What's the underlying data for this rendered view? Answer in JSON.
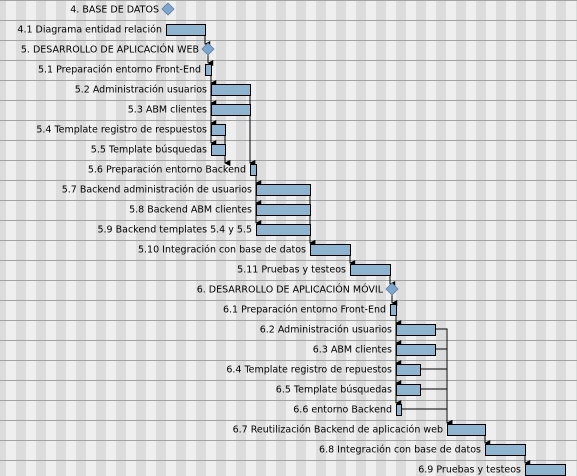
{
  "gantt": {
    "tasks": [
      {
        "label": "4. BASE DE DATOS",
        "type": "milestone"
      },
      {
        "label": "4.1 Diagrama entidad relación",
        "type": "task"
      },
      {
        "label": "5. DESARROLLO DE APLICACIÓN WEB",
        "type": "milestone"
      },
      {
        "label": "5.1 Preparación entorno Front-End",
        "type": "task"
      },
      {
        "label": "5.2 Administración usuarios",
        "type": "task"
      },
      {
        "label": "5.3 ABM clientes",
        "type": "task"
      },
      {
        "label": "5.4 Template registro de respuestos",
        "type": "task"
      },
      {
        "label": "5.5 Template búsquedas",
        "type": "task"
      },
      {
        "label": "5.6 Preparación entorno Backend",
        "type": "task"
      },
      {
        "label": "5.7 Backend administración de usuarios",
        "type": "task"
      },
      {
        "label": "5.8 Backend ABM clientes",
        "type": "task"
      },
      {
        "label": "5.9 Backend templates 5.4 y 5.5",
        "type": "task"
      },
      {
        "label": "5.10 Integración con base de datos",
        "type": "task"
      },
      {
        "label": "5.11 Pruebas y testeos",
        "type": "task"
      },
      {
        "label": "6. DESARROLLO DE APLICACIÓN MÓVIL",
        "type": "milestone"
      },
      {
        "label": "6.1 Preparación entorno Front-End",
        "type": "task"
      },
      {
        "label": "6.2 Administración usuarios",
        "type": "task"
      },
      {
        "label": "6.3 ABM clientes",
        "type": "task"
      },
      {
        "label": "6.4 Template registro de repuestos",
        "type": "task"
      },
      {
        "label": "6.5 Template búsquedas",
        "type": "task"
      },
      {
        "label": "6.6 entorno Backend",
        "type": "task"
      },
      {
        "label": "6.7 Reutilización Backend de aplicación web",
        "type": "task"
      },
      {
        "label": "6.8 Integración con base de datos",
        "type": "task"
      },
      {
        "label": "6.9 Pruebas y testeos",
        "type": "task"
      }
    ],
    "colors": {
      "bar_fill": "#8fb4d0",
      "bar_stroke": "#000000",
      "milestone": "#7fa7cd",
      "row_line": "#a3a3a3",
      "stripe_dark": "#dcdcdc",
      "stripe_light": "#efefef"
    }
  }
}
